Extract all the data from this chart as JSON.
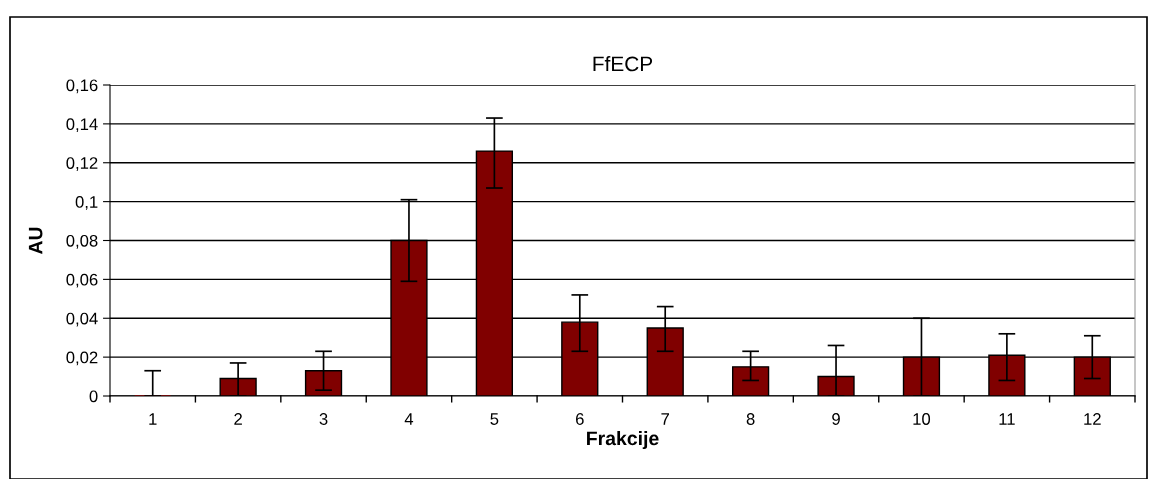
{
  "chart_data": {
    "type": "bar",
    "title": "FfECP",
    "xlabel": "Frakcije",
    "ylabel": "AU",
    "categories": [
      "1",
      "2",
      "3",
      "4",
      "5",
      "6",
      "7",
      "8",
      "9",
      "10",
      "11",
      "12"
    ],
    "values": [
      0,
      0.009,
      0.013,
      0.08,
      0.126,
      0.038,
      0.035,
      0.015,
      0.01,
      0.02,
      0.021,
      0.02
    ],
    "errors": [
      [
        0,
        0.013
      ],
      [
        0,
        0.017
      ],
      [
        0.003,
        0.023
      ],
      [
        0.059,
        0.101
      ],
      [
        0.107,
        0.143
      ],
      [
        0.023,
        0.052
      ],
      [
        0.023,
        0.046
      ],
      [
        0.008,
        0.023
      ],
      [
        0,
        0.026
      ],
      [
        0,
        0.04
      ],
      [
        0.008,
        0.032
      ],
      [
        0.009,
        0.031
      ]
    ],
    "color": "#800000",
    "ylim": [
      0,
      0.16
    ],
    "yticks": [
      0,
      {
        "value": 0.02,
        "label": "0,02"
      },
      {
        "value": 0.04,
        "label": "0,04"
      },
      {
        "value": 0.06,
        "label": "0,06"
      },
      {
        "value": 0.08,
        "label": "0,08"
      },
      {
        "value": 0.1,
        "label": "0,1"
      },
      {
        "value": 0.12,
        "label": "0,12"
      },
      {
        "value": 0.14,
        "label": "0,14"
      },
      {
        "value": 0.16,
        "label": "0,16"
      }
    ],
    "grid": "y",
    "legend": false
  }
}
